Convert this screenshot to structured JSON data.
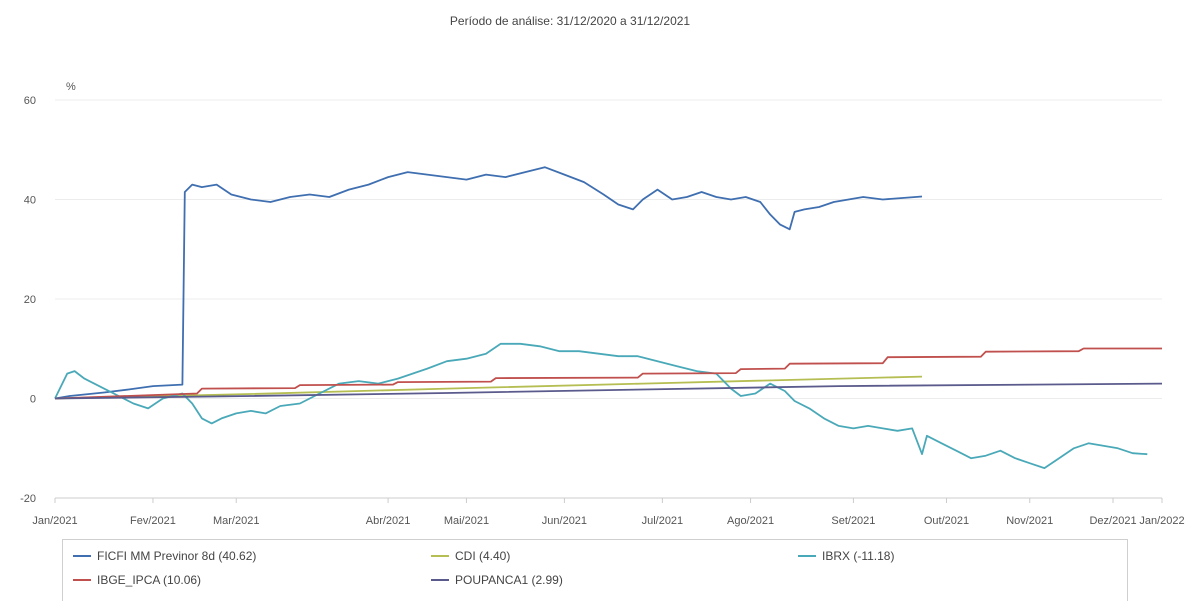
{
  "chart_data": {
    "type": "line",
    "title": "Período de análise: 31/12/2020 a 31/12/2021",
    "y_unit": "%",
    "ylim": [
      -20,
      60
    ],
    "y_ticks": [
      -20,
      0,
      20,
      40,
      60
    ],
    "x_ticks": [
      "Jan/2021",
      "Fev/2021",
      "Mar/2021",
      "Abr/2021",
      "Mai/2021",
      "Jun/2021",
      "Jul/2021",
      "Ago/2021",
      "Set/2021",
      "Out/2021",
      "Nov/2021",
      "Dez/2021",
      "Jan/2022"
    ],
    "grid": true,
    "legend_position": "bottom",
    "series": [
      {
        "name": "FICFI MM Previnor 8d (40.62)",
        "color": "#3f6fb0",
        "points": [
          [
            0,
            0
          ],
          [
            0.3,
            0.5
          ],
          [
            1,
            1.2
          ],
          [
            1.5,
            1.8
          ],
          [
            2,
            2.5
          ],
          [
            2.6,
            2.8
          ],
          [
            2.65,
            41.5
          ],
          [
            2.8,
            43
          ],
          [
            3,
            42.5
          ],
          [
            3.3,
            43
          ],
          [
            3.6,
            41
          ],
          [
            4,
            40
          ],
          [
            4.4,
            39.5
          ],
          [
            4.8,
            40.5
          ],
          [
            5.2,
            41
          ],
          [
            5.6,
            40.5
          ],
          [
            6,
            42
          ],
          [
            6.4,
            43
          ],
          [
            6.8,
            44.5
          ],
          [
            7.2,
            45.5
          ],
          [
            7.6,
            45
          ],
          [
            8,
            44.5
          ],
          [
            8.4,
            44
          ],
          [
            8.8,
            45
          ],
          [
            9.2,
            44.5
          ],
          [
            9.6,
            45.5
          ],
          [
            10,
            46.5
          ],
          [
            10.4,
            45
          ],
          [
            10.8,
            43.5
          ],
          [
            11.2,
            41
          ],
          [
            11.5,
            39
          ],
          [
            11.8,
            38
          ],
          [
            12,
            40
          ],
          [
            12.3,
            42
          ],
          [
            12.6,
            40
          ],
          [
            12.9,
            40.5
          ],
          [
            13.2,
            41.5
          ],
          [
            13.5,
            40.5
          ],
          [
            13.8,
            40
          ],
          [
            14.1,
            40.5
          ],
          [
            14.4,
            39.5
          ],
          [
            14.6,
            37
          ],
          [
            14.8,
            35
          ],
          [
            15,
            34
          ],
          [
            15.1,
            37.5
          ],
          [
            15.3,
            38
          ],
          [
            15.6,
            38.5
          ],
          [
            15.9,
            39.5
          ],
          [
            16.2,
            40
          ],
          [
            16.5,
            40.5
          ],
          [
            16.9,
            40
          ],
          [
            17.3,
            40.3
          ],
          [
            17.7,
            40.6
          ]
        ]
      },
      {
        "name": "CDI (4.40)",
        "color": "#b5be52",
        "points": [
          [
            0,
            0
          ],
          [
            4,
            0.9
          ],
          [
            8,
            2
          ],
          [
            12,
            3
          ],
          [
            17.7,
            4.4
          ]
        ]
      },
      {
        "name": "IBRX (-11.18)",
        "color": "#4aa9b8",
        "points": [
          [
            0,
            0
          ],
          [
            0.25,
            5
          ],
          [
            0.4,
            5.5
          ],
          [
            0.6,
            4
          ],
          [
            0.8,
            3
          ],
          [
            1,
            2
          ],
          [
            1.3,
            0.5
          ],
          [
            1.6,
            -1
          ],
          [
            1.9,
            -2
          ],
          [
            2.2,
            0
          ],
          [
            2.6,
            1
          ],
          [
            2.8,
            -1
          ],
          [
            3,
            -4
          ],
          [
            3.2,
            -5
          ],
          [
            3.4,
            -4
          ],
          [
            3.7,
            -3
          ],
          [
            4,
            -2.5
          ],
          [
            4.3,
            -3
          ],
          [
            4.6,
            -1.5
          ],
          [
            5,
            -1
          ],
          [
            5.4,
            1
          ],
          [
            5.8,
            3
          ],
          [
            6.2,
            3.5
          ],
          [
            6.6,
            3
          ],
          [
            7,
            4
          ],
          [
            7.3,
            5
          ],
          [
            7.6,
            6
          ],
          [
            8,
            7.5
          ],
          [
            8.4,
            8
          ],
          [
            8.8,
            9
          ],
          [
            9.1,
            11
          ],
          [
            9.5,
            11
          ],
          [
            9.9,
            10.5
          ],
          [
            10.3,
            9.5
          ],
          [
            10.7,
            9.5
          ],
          [
            11.1,
            9
          ],
          [
            11.5,
            8.5
          ],
          [
            11.9,
            8.5
          ],
          [
            12.3,
            7.5
          ],
          [
            12.7,
            6.5
          ],
          [
            13.1,
            5.5
          ],
          [
            13.5,
            5
          ],
          [
            13.8,
            2
          ],
          [
            14,
            0.5
          ],
          [
            14.3,
            1
          ],
          [
            14.6,
            3
          ],
          [
            14.9,
            1.5
          ],
          [
            15.1,
            -0.5
          ],
          [
            15.4,
            -2
          ],
          [
            15.7,
            -4
          ],
          [
            16,
            -5.5
          ],
          [
            16.3,
            -6
          ],
          [
            16.6,
            -5.5
          ],
          [
            16.9,
            -6
          ],
          [
            17.2,
            -6.5
          ],
          [
            17.5,
            -6
          ],
          [
            17.8,
            -7.5
          ],
          [
            18.1,
            -9
          ],
          [
            18.4,
            -10.5
          ],
          [
            18.7,
            -12
          ],
          [
            19,
            -11.5
          ],
          [
            19.3,
            -10.5
          ],
          [
            19.6,
            -12
          ],
          [
            19.9,
            -13
          ],
          [
            20.2,
            -14
          ],
          [
            20.5,
            -12
          ],
          [
            20.8,
            -10
          ],
          [
            21.1,
            -9
          ],
          [
            21.4,
            -9.5
          ],
          [
            21.7,
            -10
          ],
          [
            22,
            -11
          ],
          [
            22.3,
            -11.2
          ],
          [
            17.7,
            -11.18
          ]
        ]
      },
      {
        "name": "IBGE_IPCA (10.06)",
        "color": "#c0504d",
        "points": [
          [
            0,
            0
          ],
          [
            2.9,
            1
          ],
          [
            3,
            2
          ],
          [
            4.9,
            2.1
          ],
          [
            5,
            2.7
          ],
          [
            6.9,
            2.8
          ],
          [
            7,
            3.3
          ],
          [
            8.9,
            3.4
          ],
          [
            9,
            4.1
          ],
          [
            11.9,
            4.2
          ],
          [
            12,
            5
          ],
          [
            13.9,
            5.1
          ],
          [
            14,
            5.9
          ],
          [
            14.9,
            6
          ],
          [
            15,
            7
          ],
          [
            16.9,
            7.1
          ],
          [
            17,
            8.3
          ],
          [
            18.9,
            8.4
          ],
          [
            19,
            9.4
          ],
          [
            20.9,
            9.5
          ],
          [
            21,
            10.06
          ],
          [
            22.6,
            10.06
          ]
        ]
      },
      {
        "name": "POUPANCA1 (2.99)",
        "color": "#5a5a8c",
        "points": [
          [
            0,
            0
          ],
          [
            4,
            0.5
          ],
          [
            8,
            1.1
          ],
          [
            12,
            1.8
          ],
          [
            16,
            2.5
          ],
          [
            22.6,
            2.99
          ]
        ]
      }
    ]
  }
}
